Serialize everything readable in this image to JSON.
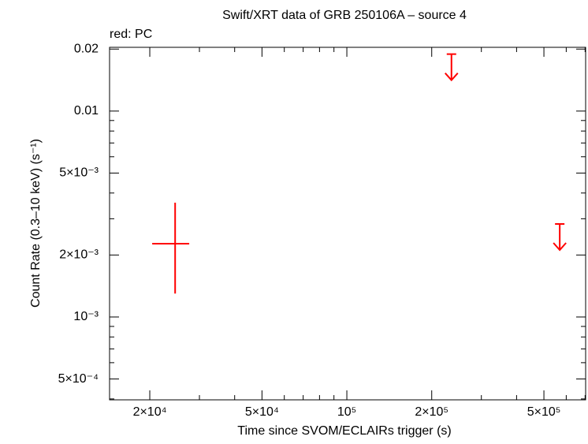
{
  "chart_data": {
    "type": "scatter",
    "title": "Swift/XRT data of GRB 250106A – source 4",
    "annotation": "red: PC",
    "x_label": "Time since SVOM/ECLAIRs trigger (s)",
    "y_label": "Count Rate (0.3–10 keV) (s⁻¹)",
    "log_x": true,
    "log_y": true,
    "xlim": [
      14400,
      703000
    ],
    "ylim": [
      0.000396,
      0.0204
    ],
    "xticks": [
      {
        "value": 20000,
        "label": "2×10⁴"
      },
      {
        "value": 50000,
        "label": "5×10⁴"
      },
      {
        "value": 100000,
        "label": "10⁵"
      },
      {
        "value": 200000,
        "label": "2×10⁵"
      },
      {
        "value": 500000,
        "label": "5×10⁵"
      }
    ],
    "yticks": [
      0.02,
      0.01,
      {
        "value": 0.005,
        "label": "5×10⁻³"
      },
      {
        "value": 0.002,
        "label": "2×10⁻³"
      },
      {
        "value": 0.001,
        "label": "10⁻³"
      },
      {
        "value": 0.0005,
        "label": "5×10⁻⁴"
      }
    ],
    "xticks_minor": [
      30000,
      40000,
      60000,
      70000,
      80000,
      90000,
      300000,
      400000,
      600000,
      700000
    ],
    "yticks_minor": [
      0.0004,
      0.0006,
      0.0007,
      0.0008,
      0.0009,
      0.003,
      0.004,
      0.006,
      0.007,
      0.008,
      0.009
    ],
    "detections": {
      "color": "#ff0000",
      "x": [
        24600
      ],
      "x_err_minus": [
        4200
      ],
      "x_err_plus": [
        3000
      ],
      "y": [
        0.00227
      ],
      "y_err_minus": [
        0.00097
      ],
      "y_err_plus": [
        0.00132
      ]
    },
    "upper_limits": {
      "color": "#ff0000",
      "x": [
        235000,
        569000
      ],
      "y": [
        0.0189,
        0.00283
      ]
    }
  }
}
